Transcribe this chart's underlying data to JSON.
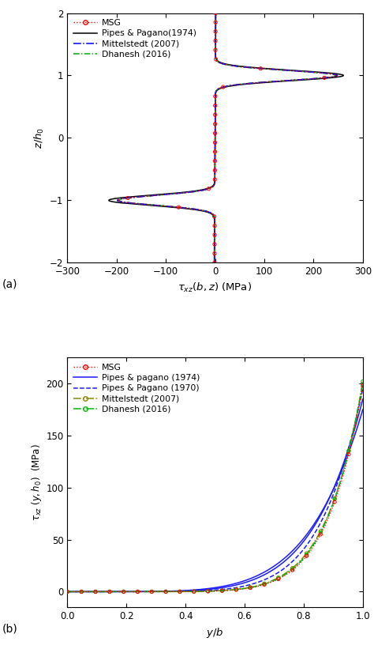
{
  "plot_a": {
    "xlabel": "$\\tau_{xz}(b, z)$ (MPa)",
    "ylabel": "$z/h_0$",
    "xlim": [
      -300,
      300
    ],
    "ylim": [
      -2,
      2
    ],
    "xticks": [
      -300,
      -200,
      -100,
      0,
      100,
      200,
      300
    ],
    "yticks": [
      -2,
      -1,
      0,
      1,
      2
    ],
    "label": "(a)"
  },
  "plot_b": {
    "xlabel": "$y/b$",
    "ylabel": "$\\tau_{xz}\\ (y,h_0)$  (MPa)",
    "xlim": [
      0.0,
      1.0
    ],
    "ylim": [
      -15,
      225
    ],
    "xticks": [
      0.0,
      0.2,
      0.4,
      0.6,
      0.8,
      1.0
    ],
    "yticks": [
      0,
      50,
      100,
      150,
      200
    ],
    "label": "(b)"
  },
  "colors": {
    "msg": "#ff0000",
    "pipes1974": "#000000",
    "mittelstedt": "#0000ff",
    "dhanesh_a": "#00aa00",
    "pipes1974_b": "#1a1aff",
    "pipes1970_b": "#1a1aff",
    "mittelstedt_b": "#888800",
    "dhanesh_b": "#00bb00",
    "msg_b": "#ff0000"
  }
}
